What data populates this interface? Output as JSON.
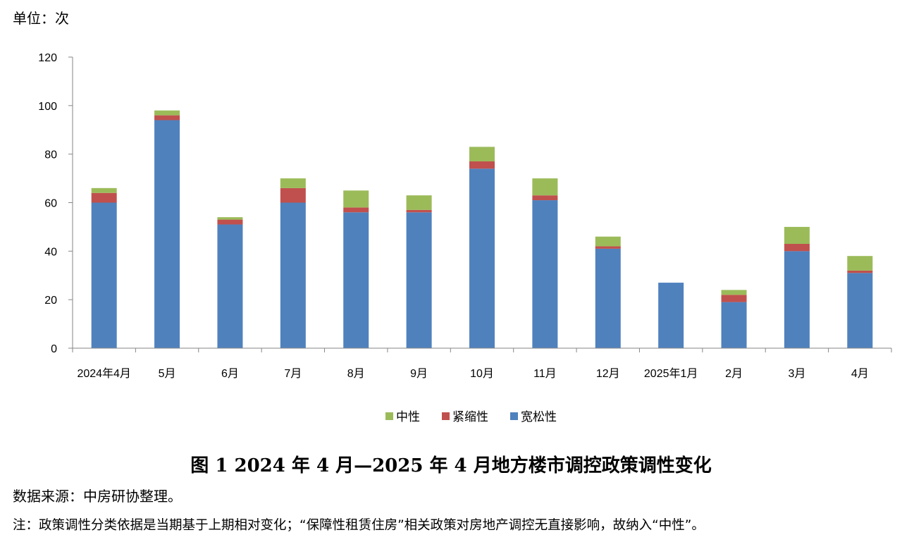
{
  "unit_label": "单位：次",
  "figure_title": "图 1 2024 年 4 月—2025 年 4 月地方楼市调控政策调性变化",
  "source": "数据来源：中房研协整理。",
  "note": "注：政策调性分类依据是当期基于上期相对变化；“保障性租赁住房”相关政策对房地产调控无直接影响，故纳入“中性”。",
  "colors": {
    "中性": "#9bbb59",
    "紧缩性": "#c0504d",
    "宽松性": "#4f81bd",
    "axis": "#868686"
  },
  "chart_data": {
    "type": "bar",
    "stacked": true,
    "categories": [
      "2024年4月",
      "5月",
      "6月",
      "7月",
      "8月",
      "9月",
      "10月",
      "11月",
      "12月",
      "2025年1月",
      "2月",
      "3月",
      "4月"
    ],
    "series": [
      {
        "name": "宽松性",
        "values": [
          60,
          94,
          51,
          60,
          56,
          56,
          74,
          61,
          41,
          27,
          19,
          40,
          31
        ]
      },
      {
        "name": "紧缩性",
        "values": [
          4,
          2,
          2,
          6,
          2,
          1,
          3,
          2,
          1,
          0,
          3,
          3,
          1
        ]
      },
      {
        "name": "中性",
        "values": [
          2,
          2,
          1,
          4,
          7,
          6,
          6,
          7,
          4,
          0,
          2,
          7,
          6
        ]
      }
    ],
    "ylim": [
      0,
      120
    ],
    "yticks": [
      0,
      20,
      40,
      60,
      80,
      100,
      120
    ],
    "legend_order": [
      "中性",
      "紧缩性",
      "宽松性"
    ],
    "legend_position": "bottom",
    "grid": false
  }
}
